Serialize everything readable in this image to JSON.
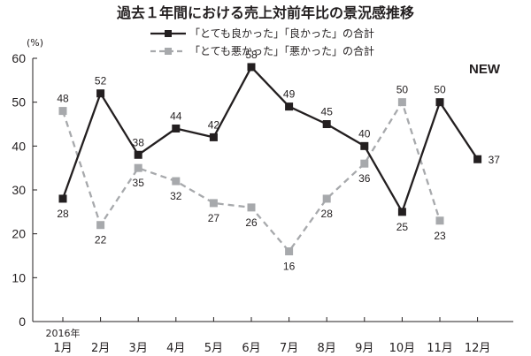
{
  "chart_data": {
    "type": "line",
    "title": "過去１年間における売上対前年比の景況感推移",
    "ylabel": "(%)",
    "ylim": [
      0,
      60
    ],
    "yticks": [
      0,
      10,
      20,
      30,
      40,
      50,
      60
    ],
    "categories": [
      "1月",
      "2月",
      "3月",
      "4月",
      "5月",
      "6月",
      "7月",
      "8月",
      "9月",
      "10月",
      "11月",
      "12月"
    ],
    "year_label": "2016年",
    "badge": "NEW",
    "grid": false,
    "legend_position": "top-center",
    "series": [
      {
        "name": "「とても良かった」「良かった」の合計",
        "values": [
          28,
          52,
          38,
          44,
          42,
          58,
          49,
          45,
          40,
          25,
          50,
          37
        ],
        "color": "#231f20",
        "style": "solid"
      },
      {
        "name": "「とても悪かった」「悪かった」の合計",
        "values": [
          48,
          22,
          35,
          32,
          27,
          26,
          16,
          28,
          36,
          50,
          23,
          null
        ],
        "color": "#a7a9ac",
        "style": "dashed"
      }
    ]
  }
}
